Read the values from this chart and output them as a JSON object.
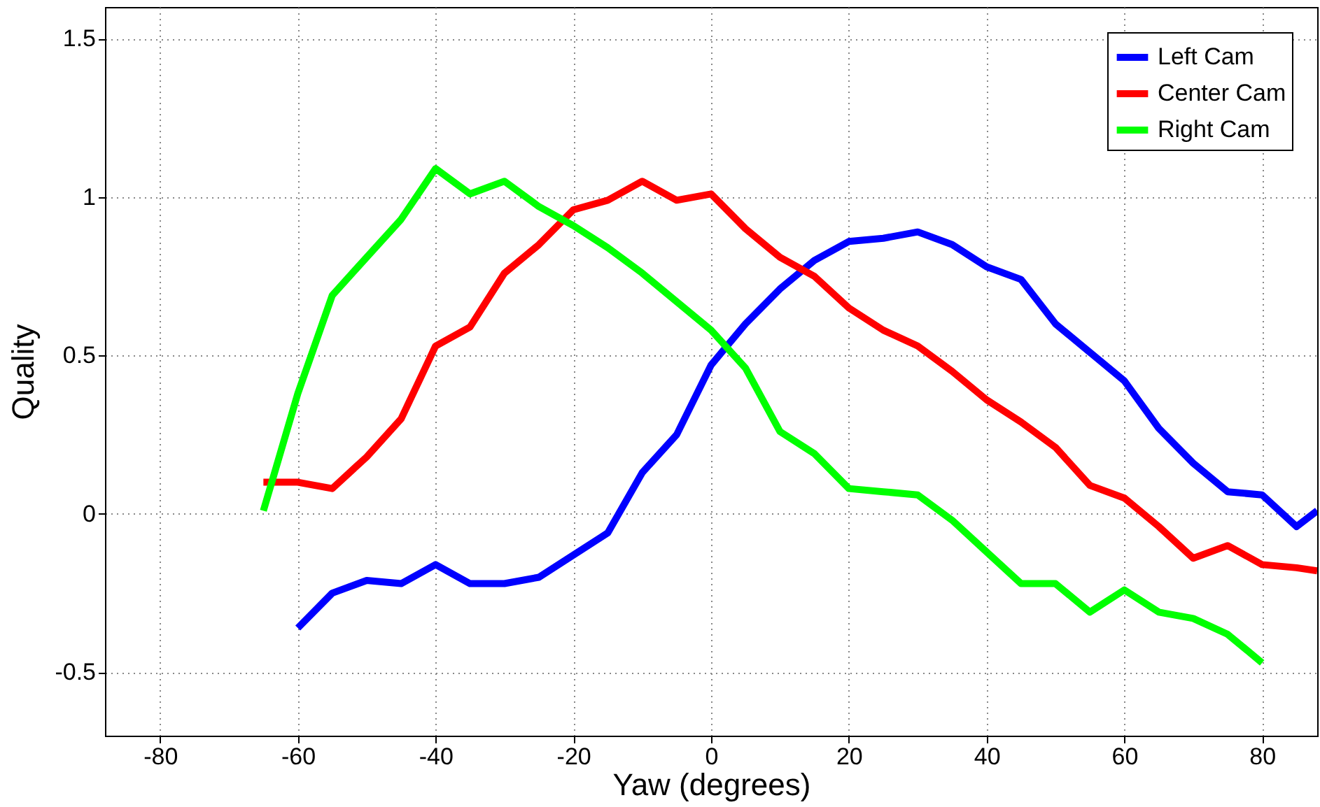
{
  "chart_data": {
    "type": "line",
    "xlabel": "Yaw (degrees)",
    "ylabel": "Quality",
    "xlim": [
      -88,
      88
    ],
    "ylim": [
      -0.7,
      1.6
    ],
    "xticks": [
      -80,
      -60,
      -40,
      -20,
      0,
      20,
      40,
      60,
      80
    ],
    "yticks": [
      -0.5,
      0,
      0.5,
      1,
      1.5
    ],
    "grid": true,
    "legend": "top right",
    "line_style": "solid",
    "series": [
      {
        "name": "Left Cam",
        "color": "#0000ff",
        "x": [
          -60,
          -55,
          -50,
          -45,
          -40,
          -35,
          -30,
          -25,
          -20,
          -15,
          -10,
          -5,
          0,
          5,
          10,
          15,
          20,
          25,
          30,
          35,
          40,
          45,
          50,
          55,
          60,
          65,
          70,
          75,
          80,
          85,
          88
        ],
        "values": [
          -0.36,
          -0.25,
          -0.21,
          -0.22,
          -0.16,
          -0.22,
          -0.22,
          -0.2,
          -0.13,
          -0.06,
          0.13,
          0.25,
          0.47,
          0.6,
          0.71,
          0.8,
          0.86,
          0.87,
          0.89,
          0.85,
          0.78,
          0.74,
          0.6,
          0.51,
          0.42,
          0.27,
          0.16,
          0.07,
          0.06,
          -0.04,
          0.01
        ]
      },
      {
        "name": "Center Cam",
        "color": "#ff0000",
        "x": [
          -65,
          -60,
          -55,
          -50,
          -45,
          -40,
          -35,
          -30,
          -25,
          -20,
          -15,
          -10,
          -5,
          0,
          5,
          10,
          15,
          20,
          25,
          30,
          35,
          40,
          45,
          50,
          55,
          60,
          65,
          70,
          75,
          80,
          85,
          88
        ],
        "values": [
          0.1,
          0.1,
          0.08,
          0.18,
          0.3,
          0.53,
          0.59,
          0.76,
          0.85,
          0.96,
          0.99,
          1.05,
          0.99,
          1.01,
          0.9,
          0.81,
          0.75,
          0.65,
          0.58,
          0.53,
          0.45,
          0.36,
          0.29,
          0.21,
          0.09,
          0.05,
          -0.04,
          -0.14,
          -0.1,
          -0.16,
          -0.17,
          -0.18
        ]
      },
      {
        "name": "Right Cam",
        "color": "#00ff00",
        "x": [
          -65,
          -60,
          -55,
          -50,
          -45,
          -40,
          -35,
          -30,
          -25,
          -20,
          -15,
          -10,
          -5,
          0,
          5,
          10,
          15,
          20,
          25,
          30,
          35,
          40,
          45,
          50,
          55,
          60,
          65,
          70,
          75,
          80
        ],
        "values": [
          0.01,
          0.38,
          0.69,
          0.81,
          0.93,
          1.09,
          1.01,
          1.05,
          0.97,
          0.91,
          0.84,
          0.76,
          0.67,
          0.58,
          0.46,
          0.26,
          0.19,
          0.08,
          0.07,
          0.06,
          -0.02,
          -0.12,
          -0.22,
          -0.22,
          -0.31,
          -0.24,
          -0.31,
          -0.33,
          -0.38,
          -0.47
        ]
      }
    ]
  }
}
